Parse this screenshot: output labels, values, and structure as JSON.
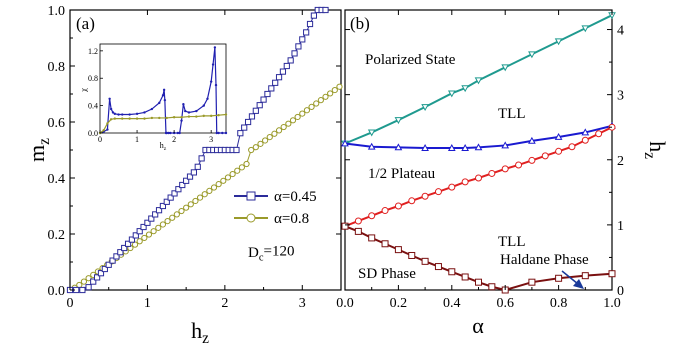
{
  "chart_data": [
    {
      "panel": "(a)",
      "type": "scatter",
      "xlabel": "h",
      "xlabel_sub": "z",
      "ylabel": "m",
      "ylabel_sub": "z",
      "xlim": [
        0,
        3.5
      ],
      "ylim": [
        0,
        1.0
      ],
      "xticks": [
        "0",
        "1",
        "2",
        "3"
      ],
      "yticks": [
        "0.0",
        "0.2",
        "0.4",
        "0.6",
        "0.8",
        "1.0"
      ],
      "annotation": "D",
      "annotation_sub": "c",
      "annotation_value": "=120",
      "colors": {
        "a045": "#2b2b9a",
        "a08": "#9a9a2a"
      },
      "series": [
        {
          "name": "α=0.45",
          "marker": "square",
          "x": [
            0.0,
            0.08,
            0.16,
            0.24,
            0.3,
            0.35,
            0.4,
            0.45,
            0.5,
            0.55,
            0.6,
            0.65,
            0.7,
            0.75,
            0.8,
            0.85,
            0.9,
            0.95,
            1.0,
            1.05,
            1.1,
            1.15,
            1.2,
            1.25,
            1.3,
            1.35,
            1.4,
            1.45,
            1.5,
            1.55,
            1.6,
            1.65,
            1.7,
            1.75,
            1.8,
            1.85,
            1.9,
            1.95,
            2.0,
            2.05,
            2.1,
            2.15,
            2.2,
            2.25,
            2.3,
            2.35,
            2.4,
            2.45,
            2.5,
            2.55,
            2.6,
            2.65,
            2.7,
            2.75,
            2.8,
            2.85,
            2.9,
            2.95,
            3.0,
            3.05,
            3.1,
            3.15,
            3.2,
            3.25,
            3.3
          ],
          "y": [
            0.0,
            0.0,
            0.0,
            0.01,
            0.03,
            0.045,
            0.06,
            0.075,
            0.09,
            0.105,
            0.12,
            0.135,
            0.15,
            0.165,
            0.18,
            0.195,
            0.21,
            0.225,
            0.24,
            0.255,
            0.27,
            0.285,
            0.3,
            0.315,
            0.33,
            0.345,
            0.36,
            0.375,
            0.39,
            0.405,
            0.42,
            0.44,
            0.47,
            0.5,
            0.5,
            0.5,
            0.5,
            0.5,
            0.5,
            0.5,
            0.5,
            0.5,
            0.56,
            0.58,
            0.6,
            0.62,
            0.64,
            0.66,
            0.68,
            0.7,
            0.72,
            0.74,
            0.76,
            0.78,
            0.8,
            0.82,
            0.845,
            0.87,
            0.895,
            0.92,
            0.95,
            0.98,
            1.0,
            1.0,
            1.0
          ]
        },
        {
          "name": "α=0.8",
          "marker": "circle",
          "x": [
            0.0,
            0.06,
            0.12,
            0.18,
            0.24,
            0.3,
            0.36,
            0.42,
            0.48,
            0.54,
            0.6,
            0.66,
            0.72,
            0.78,
            0.84,
            0.9,
            0.96,
            1.02,
            1.08,
            1.14,
            1.2,
            1.26,
            1.32,
            1.38,
            1.44,
            1.5,
            1.56,
            1.62,
            1.68,
            1.74,
            1.8,
            1.86,
            1.92,
            1.98,
            2.04,
            2.1,
            2.16,
            2.22,
            2.28,
            2.34,
            2.4,
            2.46,
            2.52,
            2.58,
            2.64,
            2.7,
            2.76,
            2.82,
            2.88,
            2.94,
            3.0,
            3.06,
            3.12,
            3.18,
            3.24,
            3.3,
            3.36,
            3.42,
            3.48
          ],
          "y": [
            0.0,
            0.008,
            0.018,
            0.03,
            0.042,
            0.054,
            0.066,
            0.078,
            0.09,
            0.102,
            0.114,
            0.126,
            0.138,
            0.15,
            0.162,
            0.174,
            0.186,
            0.198,
            0.21,
            0.222,
            0.234,
            0.246,
            0.258,
            0.27,
            0.282,
            0.294,
            0.306,
            0.318,
            0.33,
            0.342,
            0.354,
            0.366,
            0.378,
            0.39,
            0.402,
            0.414,
            0.426,
            0.438,
            0.45,
            0.5,
            0.51,
            0.522,
            0.534,
            0.546,
            0.558,
            0.57,
            0.582,
            0.594,
            0.606,
            0.618,
            0.63,
            0.642,
            0.654,
            0.666,
            0.678,
            0.69,
            0.702,
            0.714,
            0.726
          ]
        }
      ]
    },
    {
      "panel": "(b)",
      "type": "line",
      "xlabel": "α",
      "ylabel": "h",
      "ylabel_sub": "z",
      "xlim": [
        0,
        1.0
      ],
      "ylim": [
        0,
        4.3
      ],
      "xticks": [
        "0.0",
        "0.2",
        "0.4",
        "0.6",
        "0.8",
        "1.0"
      ],
      "yticks": [
        "0",
        "1",
        "2",
        "3",
        "4"
      ],
      "regions": [
        "Polarized State",
        "TLL",
        "1/2 Plateau",
        "TLL",
        "SD Phase",
        "Haldane Phase"
      ],
      "colors": {
        "polarized": "#1f9a8f",
        "plateau_top": "#1a1ad0",
        "plateau_bottom": "#e02020",
        "sd": "#7a1010",
        "arrow": "#1a3a9a"
      },
      "series": [
        {
          "marker": "triangle-down",
          "x": [
            0.0,
            0.1,
            0.2,
            0.3,
            0.4,
            0.45,
            0.5,
            0.6,
            0.7,
            0.8,
            0.9,
            1.0
          ],
          "y": [
            2.25,
            2.42,
            2.61,
            2.81,
            3.02,
            3.1,
            3.22,
            3.42,
            3.62,
            3.82,
            4.02,
            4.22
          ]
        },
        {
          "marker": "triangle-up",
          "x": [
            0.0,
            0.1,
            0.2,
            0.3,
            0.4,
            0.45,
            0.5,
            0.6,
            0.7,
            0.8,
            0.9,
            1.0
          ],
          "y": [
            2.25,
            2.2,
            2.19,
            2.18,
            2.18,
            2.18,
            2.19,
            2.22,
            2.29,
            2.35,
            2.42,
            2.52
          ]
        },
        {
          "marker": "circle",
          "x": [
            0.0,
            0.05,
            0.1,
            0.15,
            0.2,
            0.25,
            0.3,
            0.35,
            0.4,
            0.45,
            0.5,
            0.55,
            0.6,
            0.65,
            0.7,
            0.75,
            0.8,
            0.85,
            0.9,
            0.95,
            1.0
          ],
          "y": [
            0.98,
            1.06,
            1.14,
            1.22,
            1.29,
            1.37,
            1.44,
            1.51,
            1.58,
            1.66,
            1.72,
            1.79,
            1.86,
            1.92,
            1.99,
            2.06,
            2.13,
            2.2,
            2.3,
            2.4,
            2.5
          ]
        },
        {
          "marker": "square",
          "x": [
            0.0,
            0.05,
            0.1,
            0.15,
            0.2,
            0.25,
            0.3,
            0.35,
            0.4,
            0.45,
            0.5,
            0.55,
            0.6,
            0.7,
            0.8,
            0.9,
            1.0
          ],
          "y": [
            0.98,
            0.9,
            0.8,
            0.71,
            0.62,
            0.53,
            0.44,
            0.36,
            0.28,
            0.2,
            0.12,
            0.05,
            0.0,
            0.12,
            0.18,
            0.22,
            0.25
          ]
        }
      ]
    },
    {
      "panel": "inset",
      "type": "line",
      "xlabel": "h",
      "xlabel_sub": "z",
      "ylabel": "χ",
      "xlim": [
        0,
        3.4
      ],
      "ylim": [
        0,
        1.3
      ],
      "xticks": [
        "0",
        "1",
        "2",
        "3"
      ],
      "yticks": [
        "0.0",
        "0.4",
        "0.8",
        "1.2"
      ],
      "series": [
        {
          "color": "#2020b0",
          "x": [
            0.0,
            0.1,
            0.2,
            0.26,
            0.3,
            0.35,
            0.4,
            0.5,
            0.6,
            0.8,
            1.0,
            1.2,
            1.4,
            1.6,
            1.7,
            1.73,
            1.75,
            1.78,
            1.8,
            1.85,
            1.9,
            2.0,
            2.1,
            2.15,
            2.2,
            2.25,
            2.3,
            2.4,
            2.6,
            2.8,
            2.9,
            3.0,
            3.05,
            3.1,
            3.13,
            3.15,
            3.2,
            3.3,
            3.4
          ],
          "y": [
            0.0,
            0.02,
            0.05,
            0.5,
            0.35,
            0.3,
            0.28,
            0.27,
            0.27,
            0.27,
            0.28,
            0.3,
            0.35,
            0.44,
            0.55,
            0.63,
            0.48,
            0.0,
            0.0,
            0.0,
            0.0,
            0.0,
            0.0,
            0.0,
            0.18,
            0.42,
            0.32,
            0.3,
            0.32,
            0.4,
            0.5,
            0.75,
            1.0,
            1.25,
            0.7,
            0.0,
            0.0,
            0.0,
            0.0
          ]
        },
        {
          "color": "#9a9a2a",
          "x": [
            0.0,
            0.1,
            0.2,
            0.3,
            0.4,
            0.6,
            0.8,
            1.0,
            1.2,
            1.4,
            1.6,
            1.8,
            2.0,
            2.2,
            2.4,
            2.6,
            2.8,
            3.0,
            3.2,
            3.4
          ],
          "y": [
            0.0,
            0.04,
            0.14,
            0.2,
            0.21,
            0.21,
            0.21,
            0.21,
            0.21,
            0.22,
            0.22,
            0.22,
            0.23,
            0.23,
            0.24,
            0.24,
            0.25,
            0.25,
            0.26,
            0.27
          ]
        }
      ]
    }
  ]
}
